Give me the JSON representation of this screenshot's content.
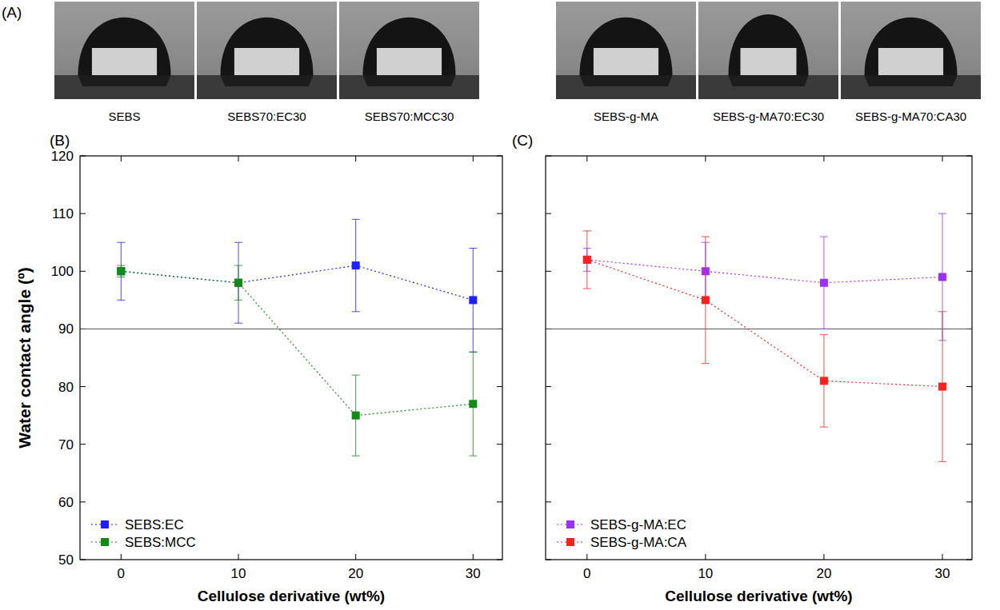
{
  "panel_a": {
    "label": "(A)",
    "images": [
      {
        "caption": "SEBS"
      },
      {
        "caption": "SEBS70:EC30"
      },
      {
        "caption": "SEBS70:MCC30"
      },
      {
        "caption": "SEBS-g-MA"
      },
      {
        "caption": "SEBS-g-MA70:EC30"
      },
      {
        "caption": "SEBS-g-MA70:CA30"
      }
    ]
  },
  "chart_data": [
    {
      "type": "line",
      "panel_label": "(B)",
      "x_label": "Cellulose derivative (wt%)",
      "y_label": "Water contact angle (º)",
      "x": [
        0,
        10,
        20,
        30
      ],
      "series": [
        {
          "name": "SEBS:EC",
          "color": "#1f1fff",
          "marker": "square",
          "line_style": "dotted",
          "values": [
            100,
            98,
            101,
            95
          ],
          "errors": [
            5,
            7,
            8,
            9
          ]
        },
        {
          "name": "SEBS:MCC",
          "color": "#138a13",
          "marker": "square",
          "line_style": "dotted",
          "values": [
            100,
            98,
            75,
            77
          ],
          "errors": [
            1,
            3,
            7,
            9
          ]
        }
      ],
      "xlim": [
        -3.5,
        32.5
      ],
      "xticks": [
        0,
        10,
        20,
        30
      ],
      "ylim": [
        50,
        120
      ],
      "yticks": [
        50,
        60,
        70,
        80,
        90,
        100,
        110,
        120
      ],
      "reference_line": 90,
      "legend": "lower left"
    },
    {
      "type": "line",
      "panel_label": "(C)",
      "x_label": "Cellulose derivative (wt%)",
      "x": [
        0,
        10,
        20,
        30
      ],
      "series": [
        {
          "name": "SEBS-g-MA:EC",
          "color": "#9b30ff",
          "marker": "square",
          "line_style": "dotted",
          "values": [
            102,
            100,
            98,
            99
          ],
          "errors": [
            2,
            5,
            8,
            11
          ]
        },
        {
          "name": "SEBS-g-MA:CA",
          "color": "#ff2020",
          "marker": "square",
          "line_style": "dotted",
          "values": [
            102,
            95,
            81,
            80
          ],
          "errors": [
            5,
            11,
            8,
            13
          ]
        }
      ],
      "xlim": [
        -3.5,
        32.5
      ],
      "xticks": [
        0,
        10,
        20,
        30
      ],
      "ylim": [
        50,
        120
      ],
      "yticks": [
        50,
        60,
        70,
        80,
        90,
        100,
        110,
        120
      ],
      "reference_line": 90,
      "legend": "lower left",
      "tick_labels": "x"
    }
  ]
}
